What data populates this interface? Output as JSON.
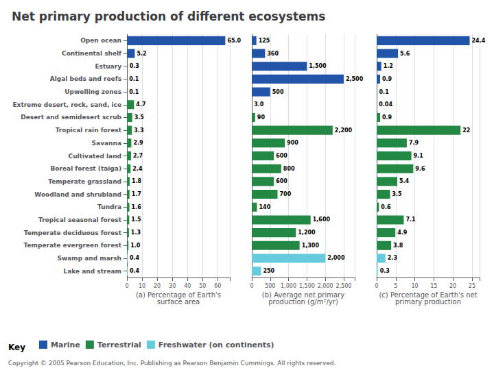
{
  "chart_data": [
    {
      "type": "bar",
      "orientation": "horizontal",
      "title": "Net primary production of different ecosystems",
      "categories": [
        "Open ocean",
        "Continental shelf",
        "Estuary",
        "Algal beds and reefs",
        "Upwelling zones",
        "Extreme desert, rock, sand, ice",
        "Desert and semidesert scrub",
        "Tropical rain forest",
        "Savanna",
        "Cultivated land",
        "Boreal forest (taiga)",
        "Temperate grassland",
        "Woodland and shrubland",
        "Tundra",
        "Tropical seasonal forest",
        "Temperate deciduous forest",
        "Temperate evergreen forest",
        "Swamp and marsh",
        "Lake and stream"
      ],
      "series": [
        {
          "name": "Marine",
          "color": "#2255aa",
          "values": [
            65.0,
            5.2,
            0.3,
            0.1,
            0.1,
            null,
            null,
            null,
            null,
            null,
            null,
            null,
            null,
            null,
            null,
            null,
            null,
            null,
            null
          ],
          "value_labels": [
            "65.0",
            "5.2",
            "0.3",
            "0.1",
            "0.1",
            null,
            null,
            null,
            null,
            null,
            null,
            null,
            null,
            null,
            null,
            null,
            null,
            null,
            null
          ]
        },
        {
          "name": "Terrestrial",
          "color": "#228844",
          "values": [
            null,
            null,
            null,
            null,
            null,
            4.7,
            3.5,
            3.3,
            2.9,
            2.7,
            2.4,
            1.8,
            1.7,
            1.6,
            1.5,
            1.3,
            1.0,
            null,
            null
          ],
          "value_labels": [
            null,
            null,
            null,
            null,
            null,
            "4.7",
            "3.5",
            "3.3",
            "2.9",
            "2.7",
            "2.4",
            "1.8",
            "1.7",
            "1.6",
            "1.5",
            "1.3",
            "1.0",
            null,
            null
          ]
        },
        {
          "name": "Freshwater (on continents)",
          "color": "#66ccdd",
          "values": [
            null,
            null,
            null,
            null,
            null,
            null,
            null,
            null,
            null,
            null,
            null,
            null,
            null,
            null,
            null,
            null,
            null,
            0.4,
            0.4
          ],
          "value_labels": [
            null,
            null,
            null,
            null,
            null,
            null,
            null,
            null,
            null,
            null,
            null,
            null,
            null,
            null,
            null,
            null,
            null,
            "0.4",
            "0.4"
          ]
        }
      ],
      "xlabel": "(a) Percentage of Earth's\nsurface area",
      "xlim": [
        0,
        68
      ],
      "xticks": [
        0,
        10,
        20,
        30,
        40,
        50,
        60
      ],
      "grid": true,
      "data_labels": true,
      "legend": "lower left",
      "annotations": [
        "Key",
        "Copyright © 2005 Pearson Education, Inc. Publishing as Pearson Benjamin Cummings. All rights reserved."
      ]
    },
    {
      "type": "bar",
      "orientation": "horizontal",
      "categories": [
        "Open ocean",
        "Continental shelf",
        "Estuary",
        "Algal beds and reefs",
        "Upwelling zones",
        "Extreme desert, rock, sand, ice",
        "Desert and semidesert scrub",
        "Tropical rain forest",
        "Savanna",
        "Cultivated land",
        "Boreal forest (taiga)",
        "Temperate grassland",
        "Woodland and shrubland",
        "Tundra",
        "Tropical seasonal forest",
        "Temperate deciduous forest",
        "Temperate evergreen forest",
        "Swamp and marsh",
        "Lake and stream"
      ],
      "series": [
        {
          "name": "Marine",
          "color": "#2255aa",
          "values": [
            125,
            360,
            1500,
            2500,
            500,
            null,
            null,
            null,
            null,
            null,
            null,
            null,
            null,
            null,
            null,
            null,
            null,
            null,
            null
          ],
          "value_labels": [
            "125",
            "360",
            "1,500",
            "2,500",
            "500",
            null,
            null,
            null,
            null,
            null,
            null,
            null,
            null,
            null,
            null,
            null,
            null,
            null,
            null
          ]
        },
        {
          "name": "Terrestrial",
          "color": "#228844",
          "values": [
            null,
            null,
            null,
            null,
            null,
            3.0,
            90,
            2200,
            900,
            600,
            800,
            600,
            700,
            140,
            1600,
            1200,
            1300,
            null,
            null
          ],
          "value_labels": [
            null,
            null,
            null,
            null,
            null,
            "3.0",
            "90",
            "2,200",
            "900",
            "600",
            "800",
            "600",
            "700",
            "140",
            "1,600",
            "1,200",
            "1,300",
            null,
            null
          ]
        },
        {
          "name": "Freshwater (on continents)",
          "color": "#66ccdd",
          "values": [
            null,
            null,
            null,
            null,
            null,
            null,
            null,
            null,
            null,
            null,
            null,
            null,
            null,
            null,
            null,
            null,
            null,
            2000,
            250
          ],
          "value_labels": [
            null,
            null,
            null,
            null,
            null,
            null,
            null,
            null,
            null,
            null,
            null,
            null,
            null,
            null,
            null,
            null,
            null,
            "2,000",
            "250"
          ]
        }
      ],
      "xlabel": "(b) Average net primary\nproduction (g/m²/yr)",
      "xlim": [
        0,
        2800
      ],
      "xticks": [
        0,
        500,
        {
          "value": 1000,
          "label": "1,000"
        },
        {
          "value": 1500,
          "label": "1,500"
        },
        {
          "value": 2000,
          "label": "2,000"
        },
        {
          "value": 2500,
          "label": "2,500"
        }
      ],
      "grid": true,
      "data_labels": true,
      "tick_labels": "x"
    },
    {
      "type": "bar",
      "orientation": "horizontal",
      "categories": [
        "Open ocean",
        "Continental shelf",
        "Estuary",
        "Algal beds and reefs",
        "Upwelling zones",
        "Extreme desert, rock, sand, ice",
        "Desert and semidesert scrub",
        "Tropical rain forest",
        "Savanna",
        "Cultivated land",
        "Boreal forest (taiga)",
        "Temperate grassland",
        "Woodland and shrubland",
        "Tundra",
        "Tropical seasonal forest",
        "Temperate deciduous forest",
        "Temperate evergreen forest",
        "Swamp and marsh",
        "Lake and stream"
      ],
      "series": [
        {
          "name": "Marine",
          "color": "#2255aa",
          "values": [
            24.4,
            5.6,
            1.2,
            0.9,
            0.1,
            null,
            null,
            null,
            null,
            null,
            null,
            null,
            null,
            null,
            null,
            null,
            null,
            null,
            null
          ],
          "value_labels": [
            "24.4",
            "5.6",
            "1.2",
            "0.9",
            "0.1",
            null,
            null,
            null,
            null,
            null,
            null,
            null,
            null,
            null,
            null,
            null,
            null,
            null,
            null
          ]
        },
        {
          "name": "Terrestrial",
          "color": "#228844",
          "values": [
            null,
            null,
            null,
            null,
            null,
            0.04,
            0.9,
            22,
            7.9,
            9.1,
            9.6,
            5.4,
            3.5,
            0.6,
            7.1,
            4.9,
            3.8,
            null,
            null
          ],
          "value_labels": [
            null,
            null,
            null,
            null,
            null,
            "0.04",
            "0.9",
            "22",
            "7.9",
            "9.1",
            "9.6",
            "5.4",
            "3.5",
            "0.6",
            "7.1",
            "4.9",
            "3.8",
            null,
            null
          ]
        },
        {
          "name": "Freshwater (on continents)",
          "color": "#66ccdd",
          "values": [
            null,
            null,
            null,
            null,
            null,
            null,
            null,
            null,
            null,
            null,
            null,
            null,
            null,
            null,
            null,
            null,
            null,
            2.3,
            0.3
          ],
          "value_labels": [
            null,
            null,
            null,
            null,
            null,
            null,
            null,
            null,
            null,
            null,
            null,
            null,
            null,
            null,
            null,
            null,
            null,
            "2.3",
            "0.3"
          ]
        }
      ],
      "xlabel": "(c) Percentage of Earth's net\nprimary production",
      "xlim": [
        0,
        27
      ],
      "xticks": [
        0,
        5,
        10,
        15,
        20,
        25
      ],
      "grid": true,
      "data_labels": true,
      "tick_labels": "x"
    }
  ]
}
